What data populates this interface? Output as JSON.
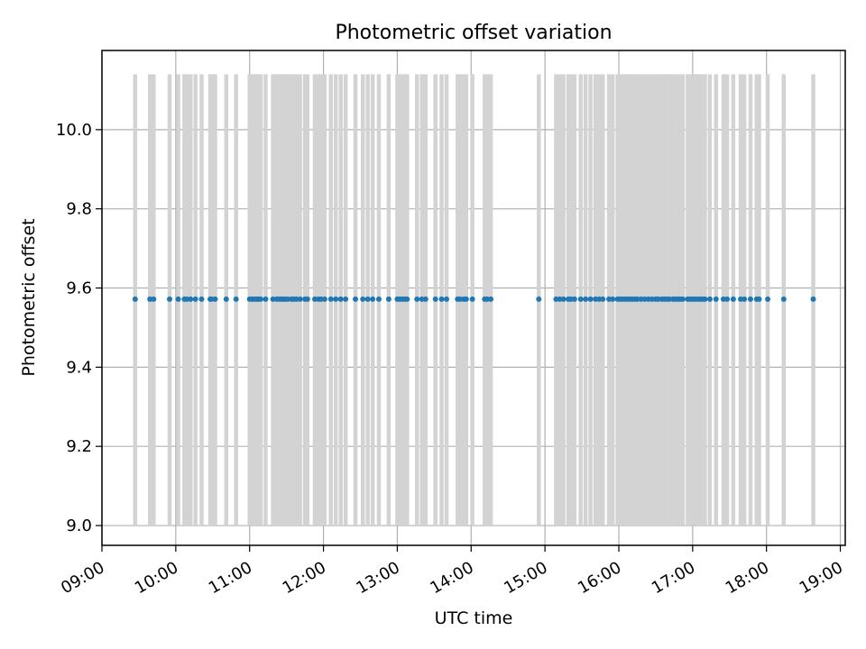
{
  "chart_data": {
    "type": "scatter",
    "title": "Photometric offset variation",
    "xlabel": "UTC time",
    "ylabel": "Photometric offset",
    "x_ticks": [
      "09:00",
      "10:00",
      "11:00",
      "12:00",
      "13:00",
      "14:00",
      "15:00",
      "16:00",
      "17:00",
      "18:00",
      "19:00"
    ],
    "y_ticks": [
      "9.0",
      "9.2",
      "9.4",
      "9.6",
      "9.8",
      "10.0"
    ],
    "y_tick_values": [
      9.0,
      9.2,
      9.4,
      9.6,
      9.8,
      10.0
    ],
    "xlim": [
      "09:00",
      "19:04"
    ],
    "ylim": [
      8.95,
      10.2
    ],
    "grid": true,
    "point_value": 9.572,
    "shaded_band": [
      9.0,
      10.14
    ],
    "times": [
      "09:27",
      "09:39",
      "09:42",
      "09:55",
      "10:02",
      "10:07",
      "10:09",
      "10:12",
      "10:16",
      "10:21",
      "10:28",
      "10:29",
      "10:32",
      "10:41",
      "10:49",
      "11:00",
      "11:02",
      "11:04",
      "11:06",
      "11:07",
      "11:09",
      "11:13",
      "11:19",
      "11:22",
      "11:24",
      "11:26",
      "11:27",
      "11:29",
      "11:31",
      "11:34",
      "11:36",
      "11:38",
      "11:41",
      "11:45",
      "11:47",
      "11:53",
      "11:56",
      "11:58",
      "12:01",
      "12:06",
      "12:10",
      "12:14",
      "12:18",
      "12:26",
      "12:32",
      "12:36",
      "12:40",
      "12:45",
      "12:53",
      "13:00",
      "13:02",
      "13:04",
      "13:06",
      "13:08",
      "13:16",
      "13:20",
      "13:23",
      "13:31",
      "13:36",
      "13:40",
      "13:49",
      "13:51",
      "13:54",
      "13:56",
      "14:01",
      "14:11",
      "14:13",
      "14:16",
      "14:55",
      "15:09",
      "15:12",
      "15:15",
      "15:19",
      "15:21",
      "15:24",
      "15:29",
      "15:33",
      "15:37",
      "15:41",
      "15:44",
      "15:47",
      "15:52",
      "15:55",
      "15:59",
      "16:01",
      "16:03",
      "16:05",
      "16:07",
      "16:09",
      "16:11",
      "16:13",
      "16:15",
      "16:18",
      "16:21",
      "16:24",
      "16:27",
      "16:30",
      "16:32",
      "16:35",
      "16:37",
      "16:39",
      "16:41",
      "16:44",
      "16:46",
      "16:48",
      "16:50",
      "16:52",
      "16:56",
      "16:58",
      "17:00",
      "17:02",
      "17:04",
      "17:06",
      "17:08",
      "17:10",
      "17:14",
      "17:19",
      "17:25",
      "17:28",
      "17:33",
      "17:39",
      "17:42",
      "17:47",
      "17:52",
      "17:54",
      "18:01",
      "18:14",
      "18:38"
    ],
    "point_color": "#1f77b4",
    "band_color": "#d3d3d3"
  }
}
